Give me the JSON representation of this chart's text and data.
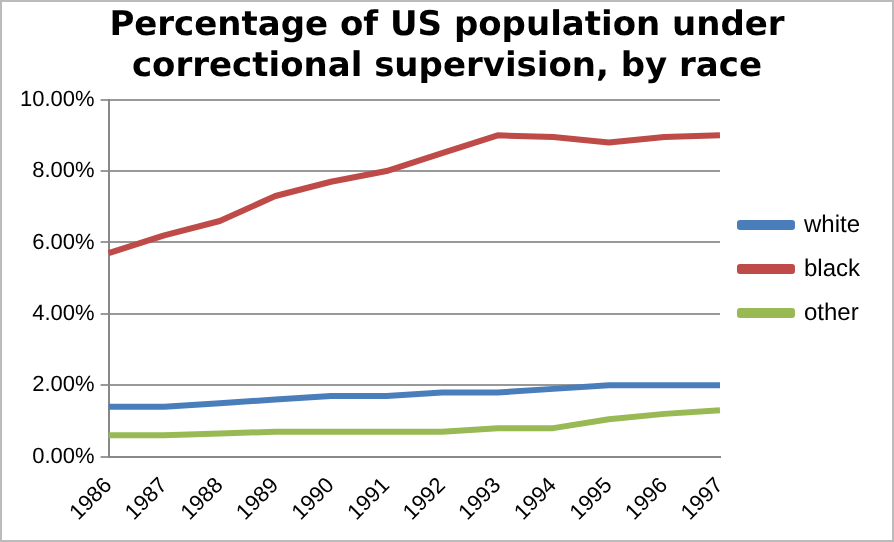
{
  "chart_data": {
    "type": "line",
    "title": [
      "Percentage of US population under",
      "correctional supervision, by race"
    ],
    "categories": [
      "1986",
      "1987",
      "1988",
      "1989",
      "1990",
      "1991",
      "1992",
      "1993",
      "1994",
      "1995",
      "1996",
      "1997"
    ],
    "series": [
      {
        "name": "white",
        "color": "#4a7ebb",
        "values": [
          1.4,
          1.4,
          1.5,
          1.6,
          1.7,
          1.7,
          1.8,
          1.8,
          1.9,
          2.0,
          2.0,
          2.0
        ]
      },
      {
        "name": "black",
        "color": "#be4b48",
        "values": [
          5.7,
          6.2,
          6.6,
          7.3,
          7.7,
          8.0,
          8.5,
          9.0,
          8.95,
          8.8,
          8.95,
          9.0
        ]
      },
      {
        "name": "other",
        "color": "#98b954",
        "values": [
          0.6,
          0.6,
          0.65,
          0.7,
          0.7,
          0.7,
          0.7,
          0.8,
          0.8,
          1.05,
          1.2,
          1.3
        ]
      }
    ],
    "ylim": [
      0,
      10
    ],
    "yticks": [
      {
        "value": 0,
        "label": "0.00%"
      },
      {
        "value": 2,
        "label": "2.00%"
      },
      {
        "value": 4,
        "label": "4.00%"
      },
      {
        "value": 6,
        "label": "6.00%"
      },
      {
        "value": 8,
        "label": "8.00%"
      },
      {
        "value": 10,
        "label": "10.00%"
      }
    ],
    "grid": "y",
    "legend": "right",
    "marker": "none"
  }
}
